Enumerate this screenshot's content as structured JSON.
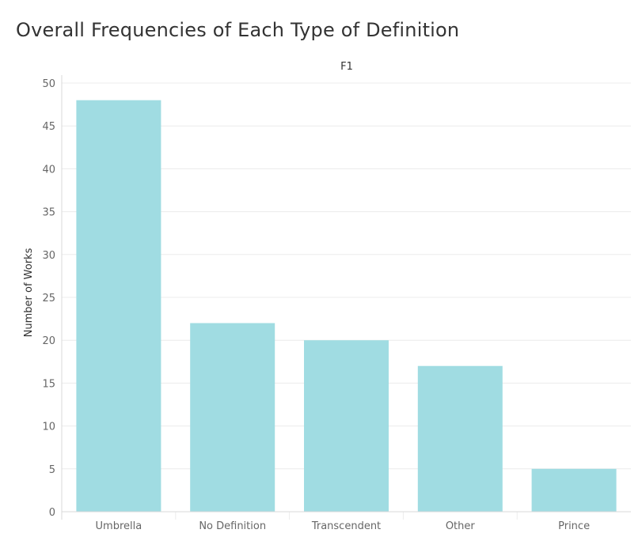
{
  "chart_data": {
    "type": "bar",
    "title": "Overall Frequencies of Each Type of Definition",
    "facet_header": "F1",
    "ylabel": "Number of Works",
    "xlabel": "",
    "categories": [
      "Umbrella",
      "No Definition",
      "Transcendent",
      "Other",
      "Prince"
    ],
    "values": [
      48,
      22,
      20,
      17,
      5
    ],
    "ylim": [
      0,
      50
    ],
    "yticks": [
      0,
      5,
      10,
      15,
      20,
      25,
      30,
      35,
      40,
      45,
      50
    ],
    "grid": true,
    "legend": "none",
    "colors": {
      "bar": "#a0dce2",
      "grid": "#ececec",
      "axis": "#d9d9d9"
    }
  }
}
